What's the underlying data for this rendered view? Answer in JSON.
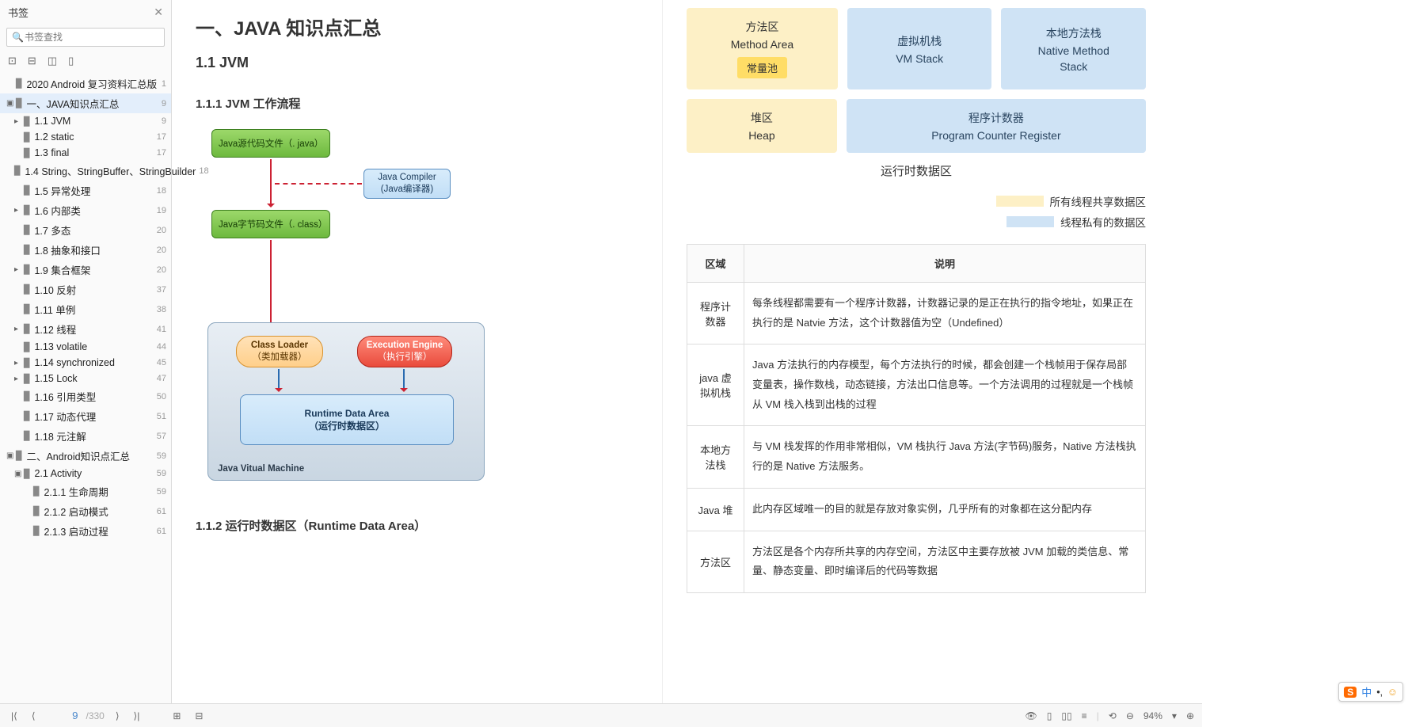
{
  "sidebar": {
    "title": "书签",
    "search_placeholder": "书签查找",
    "items": [
      {
        "label": "2020 Android 复习资料汇总版",
        "page": "1",
        "indent": 0,
        "tw": ""
      },
      {
        "label": "一、JAVA知识点汇总",
        "page": "9",
        "indent": 0,
        "tw": "▣",
        "active": true
      },
      {
        "label": "1.1 JVM",
        "page": "9",
        "indent": 1,
        "tw": "▸"
      },
      {
        "label": "1.2 static",
        "page": "17",
        "indent": 1,
        "tw": ""
      },
      {
        "label": "1.3 final",
        "page": "17",
        "indent": 1,
        "tw": ""
      },
      {
        "label": "1.4 String、StringBuffer、StringBuilder",
        "page": "18",
        "indent": 1,
        "tw": ""
      },
      {
        "label": "1.5 异常处理",
        "page": "18",
        "indent": 1,
        "tw": ""
      },
      {
        "label": "1.6 内部类",
        "page": "19",
        "indent": 1,
        "tw": "▸"
      },
      {
        "label": "1.7 多态",
        "page": "20",
        "indent": 1,
        "tw": ""
      },
      {
        "label": "1.8 抽象和接口",
        "page": "20",
        "indent": 1,
        "tw": ""
      },
      {
        "label": "1.9 集合框架",
        "page": "20",
        "indent": 1,
        "tw": "▸"
      },
      {
        "label": "1.10 反射",
        "page": "37",
        "indent": 1,
        "tw": ""
      },
      {
        "label": "1.11 单例",
        "page": "38",
        "indent": 1,
        "tw": ""
      },
      {
        "label": "1.12 线程",
        "page": "41",
        "indent": 1,
        "tw": "▸"
      },
      {
        "label": "1.13 volatile",
        "page": "44",
        "indent": 1,
        "tw": ""
      },
      {
        "label": "1.14 synchronized",
        "page": "45",
        "indent": 1,
        "tw": "▸"
      },
      {
        "label": "1.15 Lock",
        "page": "47",
        "indent": 1,
        "tw": "▸"
      },
      {
        "label": "1.16 引用类型",
        "page": "50",
        "indent": 1,
        "tw": ""
      },
      {
        "label": "1.17 动态代理",
        "page": "51",
        "indent": 1,
        "tw": ""
      },
      {
        "label": "1.18 元注解",
        "page": "57",
        "indent": 1,
        "tw": ""
      },
      {
        "label": "二、Android知识点汇总",
        "page": "59",
        "indent": 0,
        "tw": "▣"
      },
      {
        "label": "2.1 Activity",
        "page": "59",
        "indent": 1,
        "tw": "▣"
      },
      {
        "label": "2.1.1 生命周期",
        "page": "59",
        "indent": 2,
        "tw": ""
      },
      {
        "label": "2.1.2 启动模式",
        "page": "61",
        "indent": 2,
        "tw": ""
      },
      {
        "label": "2.1.3 启动过程",
        "page": "61",
        "indent": 2,
        "tw": ""
      }
    ]
  },
  "doc": {
    "title": "一、JAVA 知识点汇总",
    "h2": "1.1 JVM",
    "h3a": "1.1.1 JVM 工作流程",
    "h3b": "1.1.2 运行时数据区（Runtime Data Area）",
    "flow": {
      "java_src": "Java源代码文件（. java）",
      "compiler_l1": "Java Compiler",
      "compiler_l2": "(Java编译器)",
      "bytecode": "Java字节码文件（. class）",
      "classloader_l1": "Class Loader",
      "classloader_l2": "（类加载器）",
      "execengine_l1": "Execution Engine",
      "execengine_l2": "（执行引擎）",
      "rda_l1": "Runtime Data Area",
      "rda_l2": "（运行时数据区）",
      "jvm_label": "Java Vitual Machine"
    },
    "runtime": {
      "method_area_l1": "方法区",
      "method_area_l2": "Method Area",
      "const_pool": "常量池",
      "vmstack_l1": "虚拟机栈",
      "vmstack_l2": "VM Stack",
      "native_l1": "本地方法栈",
      "native_l2": "Native Method",
      "native_l3": "Stack",
      "heap_l1": "堆区",
      "heap_l2": "Heap",
      "pcr_l1": "程序计数器",
      "pcr_l2": "Program Counter Register",
      "caption": "运行时数据区",
      "legend_shared": "所有线程共享数据区",
      "legend_private": "线程私有的数据区",
      "color_shared": "#fdf0c6",
      "color_private": "#cfe3f5"
    },
    "table": {
      "th1": "区域",
      "th2": "说明",
      "rows": [
        {
          "k": "程序计数器",
          "v": "每条线程都需要有一个程序计数器，计数器记录的是正在执行的指令地址，如果正在执行的是 Natvie 方法，这个计数器值为空（Undefined）"
        },
        {
          "k": "java 虚拟机栈",
          "v": "Java 方法执行的内存模型，每个方法执行的时候，都会创建一个栈帧用于保存局部变量表，操作数栈，动态链接，方法出口信息等。一个方法调用的过程就是一个栈帧从 VM 栈入栈到出栈的过程"
        },
        {
          "k": "本地方法栈",
          "v": "与 VM 栈发挥的作用非常相似，VM 栈执行 Java 方法(字节码)服务，Native 方法栈执行的是 Native 方法服务。"
        },
        {
          "k": "Java 堆",
          "v": "此内存区域唯一的目的就是存放对象实例，几乎所有的对象都在这分配内存"
        },
        {
          "k": "方法区",
          "v": "方法区是各个内存所共享的内存空间，方法区中主要存放被 JVM 加载的类信息、常量、静态变量、即时编译后的代码等数据"
        }
      ]
    }
  },
  "footer": {
    "page_current": "9",
    "page_total": "/330",
    "zoom": "94%"
  },
  "ime": {
    "zh": "中"
  }
}
